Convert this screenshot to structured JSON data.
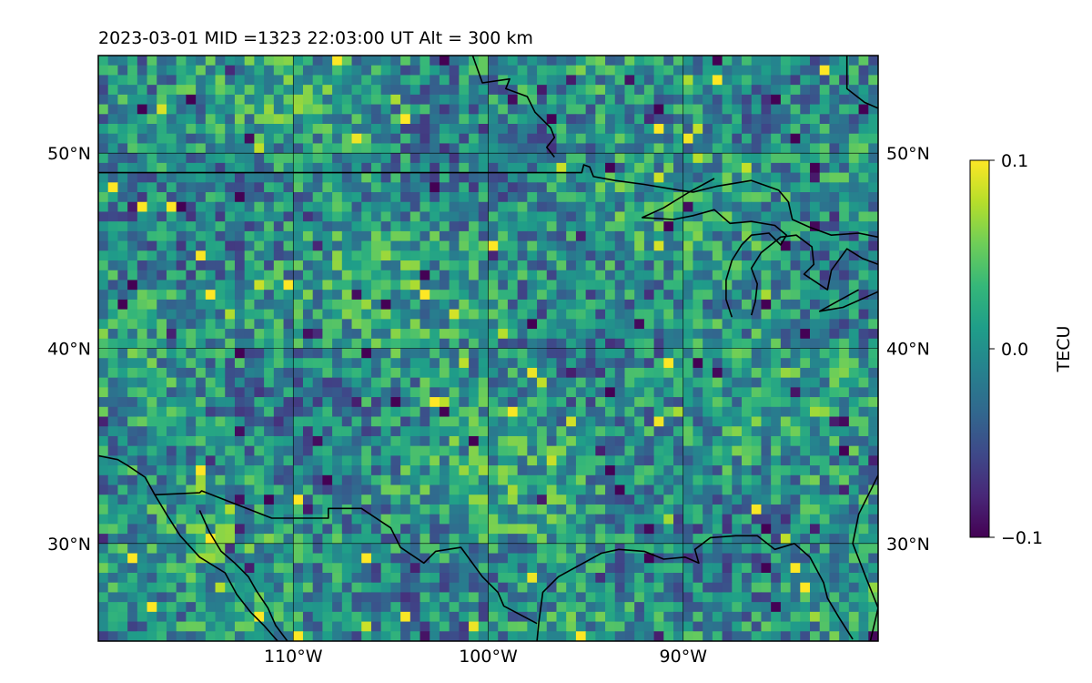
{
  "chart_data": {
    "type": "heatmap",
    "title": "2023-03-01  MID =1323    22:03:00  UT  Alt = 300 km",
    "map": {
      "lon_range": [
        -120,
        -80
      ],
      "lat_range": [
        25,
        55
      ],
      "lon_ticks": [
        {
          "value": -110,
          "label": "110°W"
        },
        {
          "value": -100,
          "label": "100°W"
        },
        {
          "value": -90,
          "label": "90°W"
        }
      ],
      "lat_ticks": [
        {
          "value": 50,
          "label": "50°N"
        },
        {
          "value": 40,
          "label": "40°N"
        },
        {
          "value": 30,
          "label": "30°N"
        }
      ],
      "grid": true,
      "coastlines_and_borders": true
    },
    "colorbar": {
      "label": "TECU",
      "colormap": "viridis",
      "range": [
        -0.1,
        0.1
      ],
      "ticks": [
        {
          "value": 0.1,
          "label": "0.1"
        },
        {
          "value": 0.0,
          "label": "0.0"
        },
        {
          "value": -0.1,
          "label": "−0.1"
        }
      ]
    },
    "field": {
      "lon_step_deg": 0.5,
      "lat_step_deg": 0.5,
      "units": "TECU"
    }
  },
  "colors": {
    "viridis": [
      "#440154",
      "#482878",
      "#3e4989",
      "#31688e",
      "#26828e",
      "#1f9e89",
      "#35b779",
      "#6ece58",
      "#b5de2b",
      "#fde725"
    ]
  }
}
